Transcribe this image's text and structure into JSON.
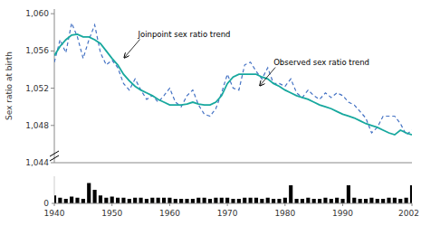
{
  "chart_data": [
    {
      "type": "line",
      "ylabel": "Sex ratio at birth",
      "x": [
        1940,
        1941,
        1942,
        1943,
        1944,
        1945,
        1946,
        1947,
        1948,
        1949,
        1950,
        1951,
        1952,
        1953,
        1954,
        1955,
        1956,
        1957,
        1958,
        1959,
        1960,
        1961,
        1962,
        1963,
        1964,
        1965,
        1966,
        1967,
        1968,
        1969,
        1970,
        1971,
        1972,
        1973,
        1974,
        1975,
        1976,
        1977,
        1978,
        1979,
        1980,
        1981,
        1982,
        1983,
        1984,
        1985,
        1986,
        1987,
        1988,
        1989,
        1990,
        1991,
        1992,
        1993,
        1994,
        1995,
        1996,
        1997,
        1998,
        1999,
        2000,
        2001,
        2002
      ],
      "series": [
        {
          "color": "#4472c4",
          "line_style": "dashed",
          "values": [
            1054.8,
            1057.2,
            1055.8,
            1059.0,
            1057.5,
            1055.2,
            1057.2,
            1058.8,
            1055.8,
            1054.5,
            1055.0,
            1054.2,
            1052.5,
            1051.8,
            1053.0,
            1051.8,
            1050.8,
            1051.2,
            1050.5,
            1051.2,
            1052.0,
            1050.5,
            1050.0,
            1051.2,
            1051.8,
            1050.2,
            1049.2,
            1049.0,
            1049.8,
            1051.5,
            1053.5,
            1052.0,
            1051.8,
            1054.5,
            1054.8,
            1053.8,
            1053.0,
            1054.2,
            1052.5,
            1052.5,
            1052.2,
            1053.0,
            1051.5,
            1051.0,
            1051.8,
            1051.2,
            1050.8,
            1051.5,
            1051.0,
            1051.5,
            1051.2,
            1050.5,
            1050.2,
            1049.5,
            1048.8,
            1047.2,
            1047.8,
            1049.0,
            1049.0,
            1049.0,
            1048.2,
            1047.0,
            1047.5
          ]
        },
        {
          "color": "#17a89e",
          "line_style": "solid",
          "values": [
            1055.5,
            1056.5,
            1057.2,
            1057.7,
            1057.8,
            1057.5,
            1057.5,
            1057.2,
            1056.8,
            1056.0,
            1055.2,
            1054.5,
            1053.5,
            1052.8,
            1052.2,
            1051.8,
            1051.5,
            1051.2,
            1050.8,
            1050.5,
            1050.2,
            1050.2,
            1050.2,
            1050.3,
            1050.5,
            1050.3,
            1050.2,
            1050.2,
            1050.5,
            1051.2,
            1052.5,
            1053.2,
            1053.5,
            1053.5,
            1053.5,
            1053.5,
            1053.2,
            1053.0,
            1052.5,
            1052.2,
            1051.8,
            1051.5,
            1051.2,
            1051.0,
            1050.8,
            1050.5,
            1050.2,
            1050.0,
            1049.8,
            1049.5,
            1049.2,
            1049.0,
            1048.8,
            1048.5,
            1048.2,
            1048.0,
            1047.8,
            1047.5,
            1047.2,
            1047.0,
            1047.5,
            1047.2,
            1047.0
          ]
        }
      ],
      "xlim": [
        1940,
        2002
      ],
      "ylim": [
        1044,
        1060.5
      ],
      "yticks": [
        {
          "value": 1044,
          "label": "1,044"
        },
        {
          "value": 1048,
          "label": "1,048"
        },
        {
          "value": 1052,
          "label": "1,052"
        },
        {
          "value": 1056,
          "label": "1,056"
        },
        {
          "value": 1060,
          "label": "1,060"
        }
      ],
      "tick_labels": "y",
      "annotations": [
        {
          "text": "Joinpoint sex ratio trend",
          "x": 1952.0,
          "y": 1055.2
        },
        {
          "text": "Observed sex ratio trend",
          "x": 1975.5,
          "y": 1052.2
        }
      ]
    },
    {
      "type": "bar",
      "x": [
        1940,
        1941,
        1942,
        1943,
        1944,
        1945,
        1946,
        1947,
        1948,
        1949,
        1950,
        1951,
        1952,
        1953,
        1954,
        1955,
        1956,
        1957,
        1958,
        1959,
        1960,
        1961,
        1962,
        1963,
        1964,
        1965,
        1966,
        1967,
        1968,
        1969,
        1970,
        1971,
        1972,
        1973,
        1974,
        1975,
        1976,
        1977,
        1978,
        1979,
        1980,
        1981,
        1982,
        1983,
        1984,
        1985,
        1986,
        1987,
        1988,
        1989,
        1990,
        1991,
        1992,
        1993,
        1994,
        1995,
        1996,
        1997,
        1998,
        1999,
        2000,
        2001,
        2002
      ],
      "values": [
        0.35,
        0.25,
        0.2,
        0.3,
        0.25,
        0.2,
        0.9,
        0.6,
        0.35,
        0.25,
        0.3,
        0.25,
        0.25,
        0.2,
        0.25,
        0.25,
        0.2,
        0.25,
        0.25,
        0.25,
        0.25,
        0.2,
        0.2,
        0.2,
        0.2,
        0.25,
        0.25,
        0.2,
        0.25,
        0.25,
        0.25,
        0.2,
        0.2,
        0.25,
        0.25,
        0.25,
        0.2,
        0.25,
        0.2,
        0.2,
        0.25,
        0.8,
        0.2,
        0.2,
        0.25,
        0.2,
        0.2,
        0.25,
        0.2,
        0.25,
        0.2,
        0.8,
        0.25,
        0.2,
        0.2,
        0.25,
        0.2,
        0.2,
        0.25,
        0.25,
        0.2,
        0.25,
        0.8
      ],
      "color": "#000000",
      "xlim": [
        1940,
        2002
      ],
      "ylim": [
        0,
        1.2
      ],
      "xticks": [
        1940,
        1950,
        1960,
        1970,
        1980,
        1990,
        2002
      ],
      "yticks": [
        0
      ]
    }
  ]
}
